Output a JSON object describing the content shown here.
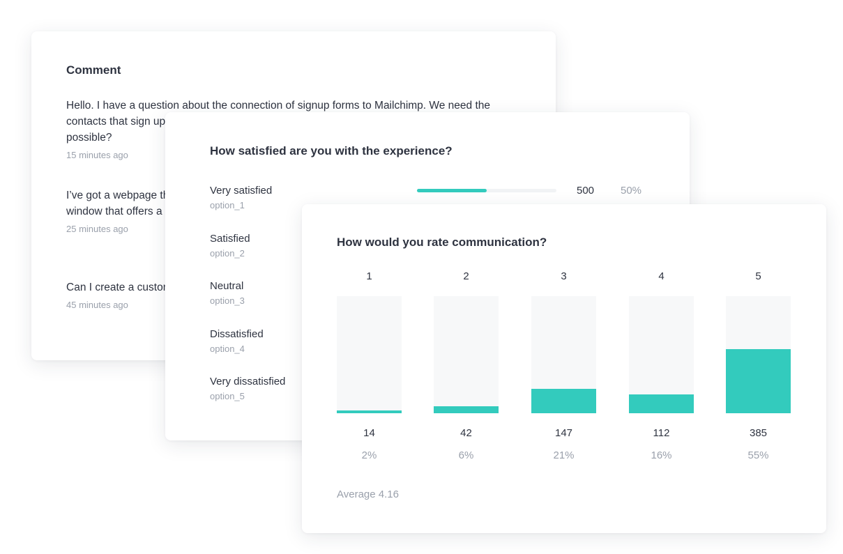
{
  "comments_card": {
    "title": "Comment",
    "items": [
      {
        "text": "Hello. I have a question about the connection of signup forms to Mailchimp. We need the contacts that sign up through signup forms to be automatically added to Mailchimp. Is this possible?",
        "time": "15 minutes ago"
      },
      {
        "text": "I’ve got a webpage that I created through a website builder. How can I create a pop up window that offers a coupon, newsletter, or other incentive?",
        "time": "25 minutes ago"
      },
      {
        "text": "Can I create a custom signup form that doesn’t use a predefined template. Thanks",
        "time": "45 minutes ago"
      }
    ]
  },
  "satisfaction_card": {
    "title": "How satisfied are you with the experience?",
    "options": [
      {
        "label": "Very satisfied",
        "sub": "option_1",
        "count": "500",
        "percent": "50%",
        "fraction": 0.5
      },
      {
        "label": "Satisfied",
        "sub": "option_2"
      },
      {
        "label": "Neutral",
        "sub": "option_3"
      },
      {
        "label": "Dissatisfied",
        "sub": "option_4"
      },
      {
        "label": "Very dissatisfied",
        "sub": "option_5"
      }
    ]
  },
  "rating_card": {
    "title": "How would you rate communication?",
    "average": "Average 4.16",
    "accent_color": "#33cbbd",
    "track_color": "#f7f8f9"
  },
  "chart_data": {
    "type": "bar",
    "categories": [
      "1",
      "2",
      "3",
      "4",
      "5"
    ],
    "values": [
      14,
      42,
      147,
      112,
      385
    ],
    "percent_labels": [
      "2%",
      "6%",
      "21%",
      "16%",
      "55%"
    ],
    "ylim": [
      0,
      700
    ]
  }
}
